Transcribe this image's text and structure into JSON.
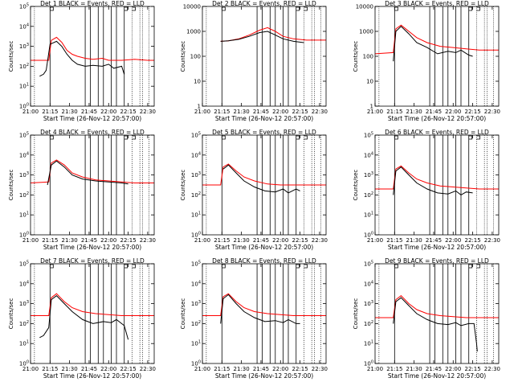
{
  "chart_data": {
    "type": "line",
    "x_tick_labels": [
      "21:00",
      "21:15",
      "21:30",
      "21:45",
      "22:00",
      "22:15",
      "22:30"
    ],
    "x_range_min": [
      0,
      95
    ],
    "xlabel": "Start Time (26-Nov-12 20:57:00)",
    "ylabel": "Counts/sec",
    "scale": "log",
    "series_colors": {
      "events": "#000000",
      "lld": "#ff0000"
    },
    "series_names": {
      "events": "Events",
      "lld": "LLD"
    },
    "solid_markers_min": [
      15,
      42,
      46,
      52,
      56,
      62,
      66,
      72
    ],
    "dotted_markers_min": [
      3,
      78,
      84,
      86,
      91
    ],
    "flag_markers_min": [
      15,
      72,
      78
    ],
    "panels": [
      {
        "title": "Det 1 BLACK = Events, RED = LLD",
        "ylog": [
          0,
          5
        ],
        "y_tick_labels": [
          "10^0",
          "10^1",
          "10^2",
          "10^3",
          "10^4",
          "10^5"
        ],
        "lld": [
          [
            0,
            2.3
          ],
          [
            14,
            2.3
          ],
          [
            16,
            3.3
          ],
          [
            20,
            3.45
          ],
          [
            24,
            3.2
          ],
          [
            28,
            2.8
          ],
          [
            32,
            2.6
          ],
          [
            36,
            2.5
          ],
          [
            42,
            2.4
          ],
          [
            48,
            2.35
          ],
          [
            55,
            2.4
          ],
          [
            60,
            2.3
          ],
          [
            70,
            2.3
          ],
          [
            80,
            2.35
          ],
          [
            90,
            2.3
          ],
          [
            95,
            2.3
          ]
        ],
        "events": [
          [
            7,
            1.5
          ],
          [
            10,
            1.6
          ],
          [
            12,
            1.8
          ],
          [
            15,
            3.1
          ],
          [
            20,
            3.25
          ],
          [
            24,
            3.0
          ],
          [
            28,
            2.6
          ],
          [
            32,
            2.3
          ],
          [
            36,
            2.1
          ],
          [
            42,
            2.0
          ],
          [
            48,
            2.05
          ],
          [
            55,
            2.0
          ],
          [
            60,
            2.1
          ],
          [
            64,
            1.9
          ],
          [
            70,
            2.0
          ],
          [
            72,
            1.6
          ]
        ]
      },
      {
        "title": "Det 2 BLACK = Events, RED = LLD",
        "ylog": [
          0,
          4
        ],
        "y_tick_labels": [
          "1",
          "10",
          "100",
          "1000",
          "10000"
        ],
        "lld": [
          [
            14,
            2.6
          ],
          [
            20,
            2.62
          ],
          [
            28,
            2.7
          ],
          [
            36,
            2.85
          ],
          [
            44,
            3.05
          ],
          [
            50,
            3.15
          ],
          [
            56,
            3.0
          ],
          [
            62,
            2.8
          ],
          [
            70,
            2.7
          ],
          [
            80,
            2.65
          ],
          [
            95,
            2.65
          ]
        ],
        "events": [
          [
            14,
            2.6
          ],
          [
            20,
            2.62
          ],
          [
            28,
            2.68
          ],
          [
            36,
            2.8
          ],
          [
            44,
            2.95
          ],
          [
            50,
            3.0
          ],
          [
            56,
            2.85
          ],
          [
            62,
            2.7
          ],
          [
            70,
            2.6
          ],
          [
            78,
            2.55
          ]
        ]
      },
      {
        "title": "Det 3 BLACK = Events, RED = LLD",
        "ylog": [
          0,
          4
        ],
        "y_tick_labels": [
          "1",
          "10",
          "100",
          "1000",
          "10000"
        ],
        "lld": [
          [
            0,
            2.1
          ],
          [
            14,
            2.15
          ],
          [
            16,
            3.1
          ],
          [
            20,
            3.25
          ],
          [
            26,
            3.0
          ],
          [
            32,
            2.75
          ],
          [
            40,
            2.55
          ],
          [
            50,
            2.4
          ],
          [
            60,
            2.35
          ],
          [
            70,
            2.3
          ],
          [
            80,
            2.25
          ],
          [
            95,
            2.25
          ]
        ],
        "events": [
          [
            14,
            1.8
          ],
          [
            16,
            3.0
          ],
          [
            20,
            3.2
          ],
          [
            26,
            2.9
          ],
          [
            32,
            2.55
          ],
          [
            40,
            2.35
          ],
          [
            48,
            2.1
          ],
          [
            56,
            2.2
          ],
          [
            62,
            2.15
          ],
          [
            66,
            2.25
          ],
          [
            72,
            2.05
          ],
          [
            75,
            2.0
          ]
        ]
      },
      {
        "title": "Det 4 BLACK = Events, RED = LLD",
        "ylog": [
          0,
          5
        ],
        "y_tick_labels": [
          "10^0",
          "10^1",
          "10^2",
          "10^3",
          "10^4",
          "10^5"
        ],
        "lld": [
          [
            0,
            2.6
          ],
          [
            14,
            2.65
          ],
          [
            16,
            3.6
          ],
          [
            20,
            3.75
          ],
          [
            26,
            3.5
          ],
          [
            32,
            3.1
          ],
          [
            40,
            2.9
          ],
          [
            50,
            2.75
          ],
          [
            60,
            2.7
          ],
          [
            70,
            2.65
          ],
          [
            80,
            2.6
          ],
          [
            95,
            2.6
          ]
        ],
        "events": [
          [
            13,
            2.5
          ],
          [
            16,
            3.5
          ],
          [
            20,
            3.7
          ],
          [
            26,
            3.4
          ],
          [
            32,
            3.0
          ],
          [
            40,
            2.8
          ],
          [
            50,
            2.7
          ],
          [
            60,
            2.65
          ],
          [
            70,
            2.6
          ],
          [
            75,
            2.55
          ]
        ]
      },
      {
        "title": "Det 5 BLACK = Events, RED = LLD",
        "ylog": [
          0,
          5
        ],
        "y_tick_labels": [
          "10^0",
          "10^1",
          "10^2",
          "10^3",
          "10^4",
          "10^5"
        ],
        "lld": [
          [
            0,
            2.5
          ],
          [
            14,
            2.5
          ],
          [
            16,
            3.4
          ],
          [
            20,
            3.55
          ],
          [
            26,
            3.2
          ],
          [
            32,
            2.9
          ],
          [
            40,
            2.7
          ],
          [
            50,
            2.55
          ],
          [
            60,
            2.5
          ],
          [
            70,
            2.5
          ],
          [
            80,
            2.5
          ],
          [
            95,
            2.5
          ]
        ],
        "events": [
          [
            16,
            3.3
          ],
          [
            20,
            3.5
          ],
          [
            26,
            3.1
          ],
          [
            32,
            2.7
          ],
          [
            40,
            2.4
          ],
          [
            48,
            2.2
          ],
          [
            56,
            2.15
          ],
          [
            62,
            2.3
          ],
          [
            66,
            2.1
          ],
          [
            72,
            2.3
          ],
          [
            75,
            2.2
          ]
        ]
      },
      {
        "title": "Det 6 BLACK = Events, RED = LLD",
        "ylog": [
          0,
          5
        ],
        "y_tick_labels": [
          "10^0",
          "10^1",
          "10^2",
          "10^3",
          "10^4",
          "10^5"
        ],
        "lld": [
          [
            0,
            2.3
          ],
          [
            14,
            2.3
          ],
          [
            16,
            3.3
          ],
          [
            20,
            3.45
          ],
          [
            26,
            3.1
          ],
          [
            32,
            2.8
          ],
          [
            40,
            2.6
          ],
          [
            50,
            2.45
          ],
          [
            60,
            2.4
          ],
          [
            70,
            2.35
          ],
          [
            80,
            2.3
          ],
          [
            95,
            2.3
          ]
        ],
        "events": [
          [
            14,
            2.0
          ],
          [
            16,
            3.2
          ],
          [
            20,
            3.4
          ],
          [
            26,
            3.0
          ],
          [
            32,
            2.6
          ],
          [
            40,
            2.3
          ],
          [
            48,
            2.1
          ],
          [
            56,
            2.05
          ],
          [
            62,
            2.2
          ],
          [
            66,
            2.0
          ],
          [
            70,
            2.15
          ],
          [
            75,
            2.1
          ]
        ]
      },
      {
        "title": "Det 7 BLACK = Events, RED = LLD",
        "ylog": [
          0,
          5
        ],
        "y_tick_labels": [
          "10^0",
          "10^1",
          "10^2",
          "10^3",
          "10^4",
          "10^5"
        ],
        "lld": [
          [
            0,
            2.4
          ],
          [
            14,
            2.4
          ],
          [
            16,
            3.3
          ],
          [
            20,
            3.5
          ],
          [
            26,
            3.1
          ],
          [
            32,
            2.8
          ],
          [
            40,
            2.6
          ],
          [
            50,
            2.5
          ],
          [
            60,
            2.45
          ],
          [
            70,
            2.4
          ],
          [
            80,
            2.4
          ],
          [
            95,
            2.4
          ]
        ],
        "events": [
          [
            7,
            1.3
          ],
          [
            10,
            1.4
          ],
          [
            14,
            1.8
          ],
          [
            16,
            3.2
          ],
          [
            20,
            3.4
          ],
          [
            26,
            3.0
          ],
          [
            32,
            2.6
          ],
          [
            40,
            2.2
          ],
          [
            48,
            2.0
          ],
          [
            56,
            2.1
          ],
          [
            62,
            2.05
          ],
          [
            66,
            2.2
          ],
          [
            72,
            1.9
          ],
          [
            75,
            1.2
          ]
        ]
      },
      {
        "title": "Det 8 BLACK = Events, RED = LLD",
        "ylog": [
          0,
          5
        ],
        "y_tick_labels": [
          "10^0",
          "10^1",
          "10^2",
          "10^3",
          "10^4",
          "10^5"
        ],
        "lld": [
          [
            0,
            2.4
          ],
          [
            14,
            2.4
          ],
          [
            16,
            3.35
          ],
          [
            20,
            3.5
          ],
          [
            26,
            3.1
          ],
          [
            32,
            2.8
          ],
          [
            40,
            2.6
          ],
          [
            50,
            2.5
          ],
          [
            60,
            2.45
          ],
          [
            70,
            2.4
          ],
          [
            80,
            2.4
          ],
          [
            95,
            2.4
          ]
        ],
        "events": [
          [
            14,
            2.0
          ],
          [
            16,
            3.25
          ],
          [
            20,
            3.45
          ],
          [
            26,
            3.0
          ],
          [
            32,
            2.6
          ],
          [
            40,
            2.3
          ],
          [
            48,
            2.1
          ],
          [
            56,
            2.15
          ],
          [
            62,
            2.05
          ],
          [
            66,
            2.2
          ],
          [
            72,
            2.0
          ],
          [
            75,
            2.0
          ]
        ]
      },
      {
        "title": "Det 9 BLACK = Events, RED = LLD",
        "ylog": [
          0,
          5
        ],
        "y_tick_labels": [
          "10^0",
          "10^1",
          "10^2",
          "10^3",
          "10^4",
          "10^5"
        ],
        "lld": [
          [
            0,
            2.3
          ],
          [
            14,
            2.3
          ],
          [
            16,
            3.2
          ],
          [
            20,
            3.4
          ],
          [
            26,
            3.0
          ],
          [
            32,
            2.7
          ],
          [
            40,
            2.5
          ],
          [
            50,
            2.4
          ],
          [
            60,
            2.35
          ],
          [
            70,
            2.3
          ],
          [
            80,
            2.3
          ],
          [
            95,
            2.3
          ]
        ],
        "events": [
          [
            14,
            2.0
          ],
          [
            16,
            3.1
          ],
          [
            20,
            3.3
          ],
          [
            26,
            2.9
          ],
          [
            32,
            2.5
          ],
          [
            40,
            2.2
          ],
          [
            48,
            2.0
          ],
          [
            56,
            1.95
          ],
          [
            62,
            2.05
          ],
          [
            66,
            1.9
          ],
          [
            72,
            2.0
          ],
          [
            76,
            2.0
          ],
          [
            78,
            1.0
          ],
          [
            78.5,
            0.6
          ]
        ]
      }
    ]
  }
}
